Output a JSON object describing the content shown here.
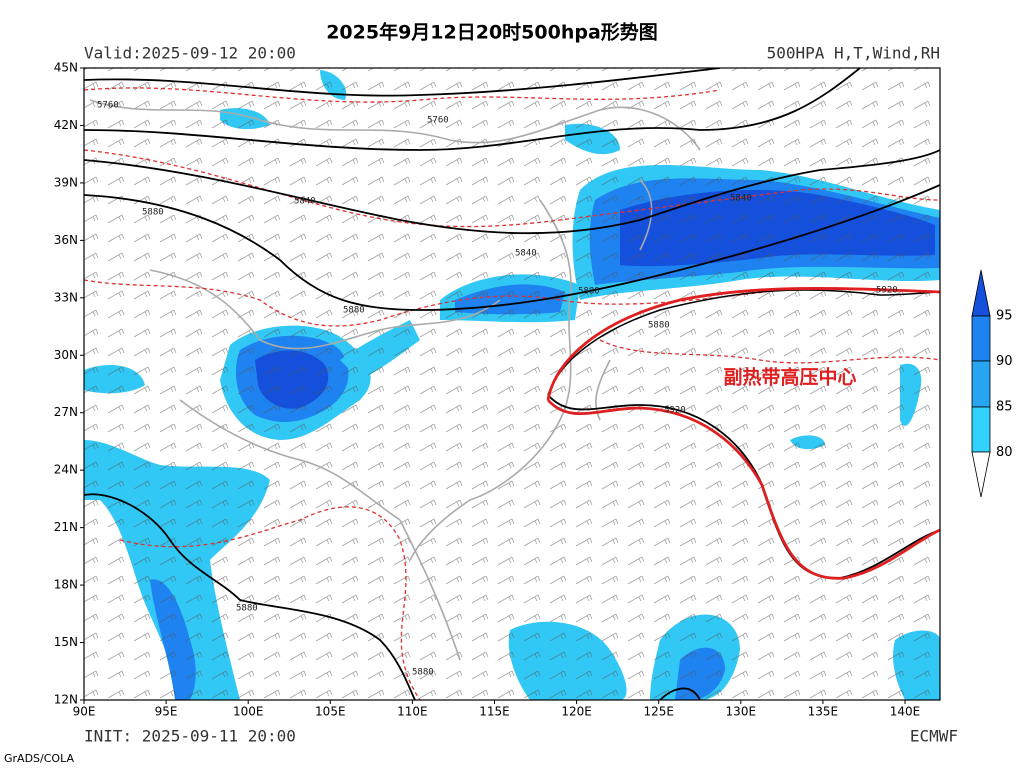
{
  "header": {
    "title": "2025年9月12日20时500hpa形势图",
    "valid": "Valid:2025-09-12 20:00",
    "fields": "500HPA H,T,Wind,RH"
  },
  "axes": {
    "lat_labels": [
      "45N",
      "42N",
      "39N",
      "36N",
      "33N",
      "30N",
      "27N",
      "24N",
      "21N",
      "18N",
      "15N",
      "12N"
    ],
    "lon_labels": [
      "90E",
      "95E",
      "100E",
      "105E",
      "110E",
      "115E",
      "120E",
      "125E",
      "130E",
      "135E",
      "140E"
    ]
  },
  "colorbar": {
    "levels": [
      95,
      90,
      85,
      80
    ]
  },
  "contour_labels": [
    "5760",
    "5760",
    "5840",
    "5840",
    "5840",
    "5880",
    "5880",
    "5880",
    "5880",
    "5920",
    "5920",
    "5880",
    "5880"
  ],
  "annotation": "副热带高压中心",
  "footer": {
    "init": "INIT: 2025-09-11 20:00",
    "source": "ECMWF",
    "software": "GrADS/COLA"
  }
}
